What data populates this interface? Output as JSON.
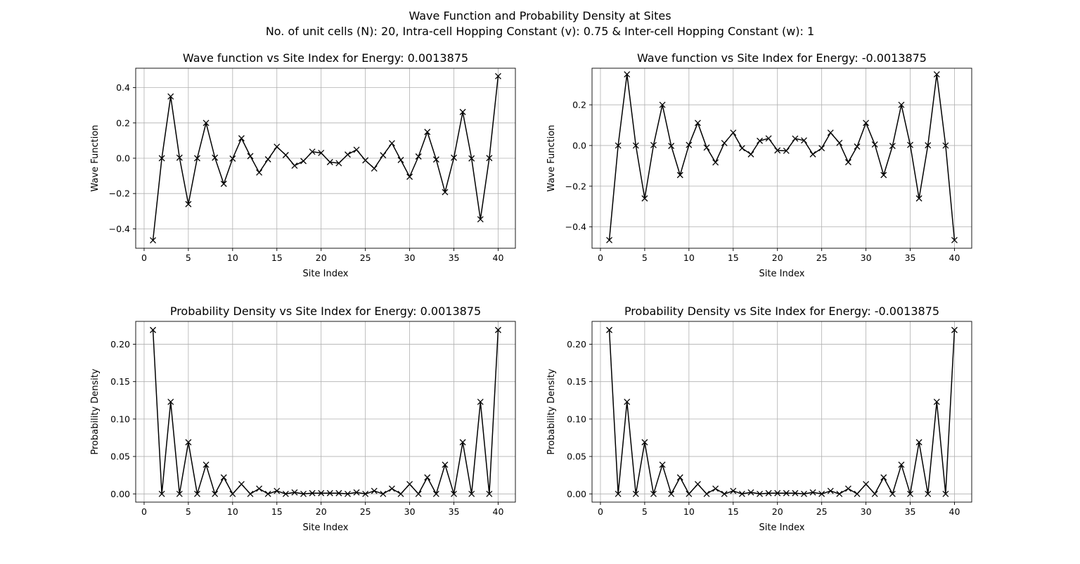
{
  "figure": {
    "title_line1": "Wave Function and Probability Density at Sites",
    "title_line2": "No. of unit cells (N): 20, Intra-cell Hopping Constant (v): 0.75 & Inter-cell Hopping Constant (w): 1"
  },
  "chart_data": [
    {
      "type": "line",
      "title": "Wave function vs Site Index for Energy: 0.0013875",
      "xlabel": "Site Index",
      "ylabel": "Wave Function",
      "xlim": [
        -0.95,
        41.95
      ],
      "ylim": [
        -0.51,
        0.51
      ],
      "xticks": [
        0,
        5,
        10,
        15,
        20,
        25,
        30,
        35,
        40
      ],
      "yticks": [
        -0.4,
        -0.2,
        0.0,
        0.2,
        0.4
      ],
      "ytick_labels": [
        "−0.4",
        "−0.2",
        "0.0",
        "0.2",
        "0.4"
      ],
      "grid": true,
      "color": "#000000",
      "marker": "x",
      "x": [
        1,
        2,
        3,
        4,
        5,
        6,
        7,
        8,
        9,
        10,
        11,
        12,
        13,
        14,
        15,
        16,
        17,
        18,
        19,
        20,
        21,
        22,
        23,
        24,
        25,
        26,
        27,
        28,
        29,
        30,
        31,
        32,
        33,
        34,
        35,
        36,
        37,
        38,
        39,
        40
      ],
      "y": [
        -0.465,
        0.0,
        0.35,
        0.003,
        -0.26,
        0.0,
        0.2,
        0.003,
        -0.145,
        -0.002,
        0.113,
        0.012,
        -0.081,
        -0.006,
        0.065,
        0.018,
        -0.042,
        -0.016,
        0.037,
        0.03,
        -0.022,
        -0.028,
        0.021,
        0.048,
        -0.012,
        -0.058,
        0.017,
        0.085,
        -0.01,
        -0.105,
        0.01,
        0.149,
        -0.007,
        -0.192,
        0.003,
        0.262,
        -0.001,
        -0.346,
        0.001,
        0.465
      ]
    },
    {
      "type": "line",
      "title": "Wave function vs Site Index for Energy: -0.0013875",
      "xlabel": "Site Index",
      "ylabel": "Wave Function",
      "xlim": [
        -0.95,
        41.95
      ],
      "ylim": [
        -0.505,
        0.38
      ],
      "xticks": [
        0,
        5,
        10,
        15,
        20,
        25,
        30,
        35,
        40
      ],
      "yticks": [
        -0.4,
        -0.2,
        0.0,
        0.2
      ],
      "ytick_labels": [
        "−0.4",
        "−0.2",
        "0.0",
        "0.2"
      ],
      "grid": true,
      "color": "#000000",
      "marker": "x",
      "x": [
        1,
        2,
        3,
        4,
        5,
        6,
        7,
        8,
        9,
        10,
        11,
        12,
        13,
        14,
        15,
        16,
        17,
        18,
        19,
        20,
        21,
        22,
        23,
        24,
        25,
        26,
        27,
        28,
        29,
        30,
        31,
        32,
        33,
        34,
        35,
        36,
        37,
        38,
        39,
        40
      ],
      "y": [
        -0.465,
        0.0,
        0.35,
        0.0,
        -0.26,
        0.002,
        0.2,
        -0.002,
        -0.145,
        0.003,
        0.111,
        -0.01,
        -0.083,
        0.012,
        0.063,
        -0.013,
        -0.043,
        0.023,
        0.035,
        -0.024,
        -0.026,
        0.034,
        0.025,
        -0.043,
        -0.013,
        0.063,
        0.013,
        -0.082,
        -0.005,
        0.111,
        0.005,
        -0.145,
        -0.002,
        0.2,
        0.003,
        -0.26,
        0.001,
        0.35,
        0.0,
        -0.465
      ]
    },
    {
      "type": "line",
      "title": "Probability Density vs Site Index for Energy: 0.0013875",
      "xlabel": "Site Index",
      "ylabel": "Probability Density",
      "xlim": [
        -0.95,
        41.95
      ],
      "ylim": [
        -0.011,
        0.2305
      ],
      "xticks": [
        0,
        5,
        10,
        15,
        20,
        25,
        30,
        35,
        40
      ],
      "yticks": [
        0.0,
        0.05,
        0.1,
        0.15,
        0.2
      ],
      "ytick_labels": [
        "0.00",
        "0.05",
        "0.10",
        "0.15",
        "0.20"
      ],
      "grid": true,
      "color": "#000000",
      "marker": "x",
      "x": [
        1,
        2,
        3,
        4,
        5,
        6,
        7,
        8,
        9,
        10,
        11,
        12,
        13,
        14,
        15,
        16,
        17,
        18,
        19,
        20,
        21,
        22,
        23,
        24,
        25,
        26,
        27,
        28,
        29,
        30,
        31,
        32,
        33,
        34,
        35,
        36,
        37,
        38,
        39,
        40
      ],
      "y": [
        0.219,
        0.0,
        0.123,
        0.0,
        0.069,
        0.0,
        0.039,
        0.0,
        0.022,
        0.0,
        0.013,
        0.0,
        0.007,
        0.0,
        0.004,
        0.0,
        0.002,
        0.0,
        0.001,
        0.001,
        0.001,
        0.001,
        0.0,
        0.002,
        0.0,
        0.004,
        0.0,
        0.007,
        0.0,
        0.013,
        0.0,
        0.022,
        0.0,
        0.039,
        0.0,
        0.069,
        0.0,
        0.123,
        0.0,
        0.219
      ]
    },
    {
      "type": "line",
      "title": "Probability Density vs Site Index for Energy: -0.0013875",
      "xlabel": "Site Index",
      "ylabel": "Probability Density",
      "xlim": [
        -0.95,
        41.95
      ],
      "ylim": [
        -0.011,
        0.2305
      ],
      "xticks": [
        0,
        5,
        10,
        15,
        20,
        25,
        30,
        35,
        40
      ],
      "yticks": [
        0.0,
        0.05,
        0.1,
        0.15,
        0.2
      ],
      "ytick_labels": [
        "0.00",
        "0.05",
        "0.10",
        "0.15",
        "0.20"
      ],
      "grid": true,
      "color": "#000000",
      "marker": "x",
      "x": [
        1,
        2,
        3,
        4,
        5,
        6,
        7,
        8,
        9,
        10,
        11,
        12,
        13,
        14,
        15,
        16,
        17,
        18,
        19,
        20,
        21,
        22,
        23,
        24,
        25,
        26,
        27,
        28,
        29,
        30,
        31,
        32,
        33,
        34,
        35,
        36,
        37,
        38,
        39,
        40
      ],
      "y": [
        0.219,
        0.0,
        0.123,
        0.0,
        0.069,
        0.0,
        0.039,
        0.0,
        0.022,
        0.0,
        0.013,
        0.0,
        0.007,
        0.0,
        0.004,
        0.0,
        0.002,
        0.0,
        0.001,
        0.001,
        0.001,
        0.001,
        0.0,
        0.002,
        0.0,
        0.004,
        0.0,
        0.007,
        0.0,
        0.013,
        0.0,
        0.022,
        0.0,
        0.039,
        0.0,
        0.069,
        0.0,
        0.123,
        0.0,
        0.219
      ]
    }
  ]
}
